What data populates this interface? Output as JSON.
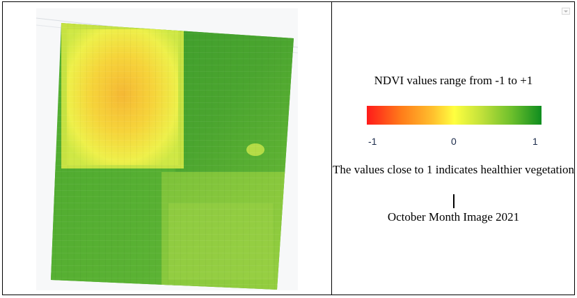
{
  "legend": {
    "title": "NDVI values range from -1 to +1",
    "ticks": [
      "-1",
      "0",
      "1"
    ],
    "note": "The values close to 1 indicates healthier vegetation",
    "caption": "October Month Image 2021",
    "scale_min": -1,
    "scale_max": 1,
    "colors": [
      "#ff1a1a",
      "#ff7d1a",
      "#ffc12e",
      "#ffff40",
      "#c0e03a",
      "#6cbf2c",
      "#0f8d1f"
    ]
  },
  "map": {
    "icon": "collapse-icon"
  }
}
